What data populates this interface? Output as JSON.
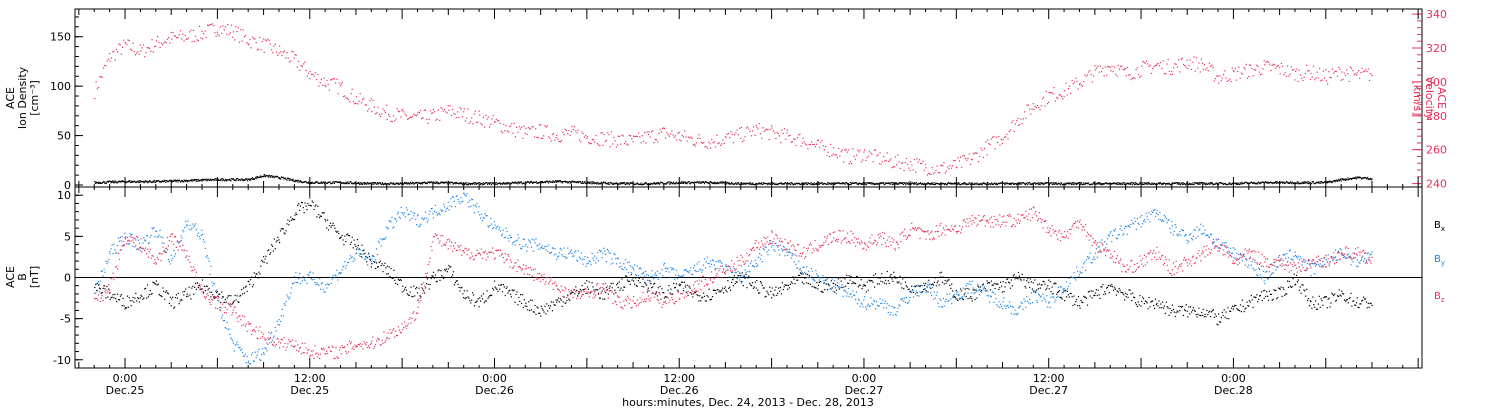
{
  "chart_data": [
    {
      "type": "scatter",
      "panel": "top",
      "ylabel_left": [
        "ACE",
        "Ion Density",
        "[cm⁻³]"
      ],
      "ylabel_right": [
        "ACE",
        "Velocity",
        "[km/s]"
      ],
      "ylim_left": [
        -2,
        178
      ],
      "ylim_right": [
        238,
        343
      ],
      "yticks_left": [
        0,
        50,
        100,
        150
      ],
      "yticks_right": [
        240,
        260,
        280,
        300,
        320,
        340
      ],
      "grid": false,
      "series": [
        {
          "axis": "right",
          "color": "#e8305a",
          "x": [
            -4,
            -2,
            0,
            2,
            4,
            6,
            8,
            10,
            12,
            14,
            16,
            18,
            20,
            22,
            24,
            26,
            28,
            30,
            32,
            34,
            36,
            38,
            40,
            42,
            44,
            46,
            48,
            50,
            52,
            54,
            56,
            58,
            60,
            62,
            64,
            66,
            68,
            70,
            72,
            74,
            76,
            78,
            80,
            82,
            84,
            86,
            88,
            90,
            92,
            94,
            96,
            98,
            100,
            102,
            104,
            106,
            108,
            110,
            112,
            114,
            116,
            118,
            120,
            122,
            124,
            126,
            128,
            130,
            132,
            134,
            136,
            138,
            140,
            142,
            144,
            146,
            148,
            150,
            152,
            154,
            156,
            158,
            160,
            162
          ],
          "y": [
            295,
            315,
            322,
            318,
            323,
            326,
            327,
            329,
            332,
            330,
            325,
            322,
            318,
            313,
            305,
            300,
            297,
            290,
            286,
            282,
            280,
            279,
            280,
            283,
            281,
            279,
            276,
            273,
            270,
            271,
            269,
            270,
            268,
            267,
            266,
            265,
            268,
            270,
            268,
            266,
            265,
            267,
            269,
            272,
            270,
            268,
            266,
            262,
            260,
            256,
            258,
            255,
            253,
            252,
            250,
            249,
            251,
            255,
            262,
            268,
            278,
            286,
            292,
            295,
            300,
            306,
            310,
            305,
            308,
            310,
            309,
            312,
            310,
            303,
            305,
            307,
            309,
            308,
            305,
            306,
            303,
            306,
            304,
            305
          ]
        },
        {
          "axis": "left",
          "color": "#000000",
          "x": [
            -4,
            0,
            4,
            8,
            12,
            16,
            18,
            20,
            22,
            24,
            28,
            32,
            36,
            40,
            44,
            48,
            52,
            56,
            60,
            64,
            68,
            72,
            76,
            80,
            84,
            88,
            92,
            96,
            100,
            104,
            108,
            112,
            116,
            120,
            124,
            128,
            132,
            136,
            140,
            144,
            148,
            152,
            156,
            158,
            160,
            162
          ],
          "y": [
            3,
            4,
            4,
            5,
            6,
            6,
            10,
            8,
            5,
            3,
            3,
            2,
            2,
            3,
            2,
            2,
            3,
            4,
            3,
            2,
            2,
            3,
            3,
            2,
            2,
            2,
            2,
            2,
            2,
            2,
            2,
            2,
            2,
            2,
            2,
            2,
            2,
            2,
            2,
            2,
            3,
            3,
            3,
            6,
            8,
            7
          ]
        }
      ]
    },
    {
      "type": "scatter",
      "panel": "bottom",
      "ylabel": [
        "ACE",
        "B",
        "[nT]"
      ],
      "ylim": [
        -11,
        11
      ],
      "yticks": [
        -10,
        -5,
        0,
        5,
        10
      ],
      "zero_line": true,
      "grid": false,
      "xlabel": "hours:minutes, Dec. 24, 2013 - Dec. 28, 2013",
      "xlim": [
        -6.5,
        168.5
      ],
      "xticks": [
        {
          "x": 0,
          "time": "0:00",
          "date": "Dec.25"
        },
        {
          "x": 24,
          "time": "12:00",
          "date": "Dec.25"
        },
        {
          "x": 48,
          "time": "0:00",
          "date": "Dec.26"
        },
        {
          "x": 72,
          "time": "12:00",
          "date": "Dec.26"
        },
        {
          "x": 96,
          "time": "0:00",
          "date": "Dec.27"
        },
        {
          "x": 120,
          "time": "12:00",
          "date": "Dec.27"
        },
        {
          "x": 144,
          "time": "0:00",
          "date": "Dec.28"
        }
      ],
      "legend_placement": "right",
      "series": [
        {
          "name": "Bx",
          "label_main": "B",
          "label_sub": "x",
          "color": "#000000",
          "x": [
            -4,
            -2,
            0,
            2,
            4,
            6,
            8,
            10,
            12,
            14,
            16,
            18,
            20,
            22,
            24,
            26,
            28,
            30,
            32,
            34,
            36,
            38,
            40,
            42,
            44,
            46,
            48,
            50,
            52,
            54,
            56,
            58,
            60,
            62,
            64,
            66,
            68,
            70,
            72,
            74,
            76,
            78,
            80,
            82,
            84,
            86,
            88,
            90,
            92,
            94,
            96,
            98,
            100,
            102,
            104,
            106,
            108,
            110,
            112,
            114,
            116,
            118,
            120,
            122,
            124,
            126,
            128,
            130,
            132,
            134,
            136,
            138,
            140,
            142,
            144,
            146,
            148,
            150,
            152,
            154,
            156,
            158,
            160,
            162
          ],
          "y": [
            -1,
            -2,
            -3,
            -2,
            -1,
            -3,
            -2,
            -1,
            -2,
            -3,
            -1,
            2,
            5,
            8,
            9,
            7,
            5,
            4,
            2,
            1,
            -1,
            -2,
            0,
            1,
            -2,
            -3,
            -1,
            -2,
            -3,
            -4,
            -3,
            -2,
            -1,
            -2,
            -1,
            0,
            -1,
            -2,
            -1,
            -2,
            -2,
            -1,
            0,
            -1,
            -2,
            -1,
            0,
            -1,
            -1,
            0,
            -1,
            0,
            0,
            -1,
            -1,
            0,
            -2,
            -2,
            -1,
            -1,
            0,
            -1,
            -1,
            -2,
            -3,
            -2,
            -1,
            -2,
            -3,
            -3,
            -4,
            -4,
            -4,
            -5,
            -4,
            -3,
            -2,
            -2,
            0,
            -3,
            -3,
            -2,
            -3,
            -3
          ]
        },
        {
          "name": "By",
          "label_main": "B",
          "label_sub": "y",
          "color": "#1e86e8",
          "x": [
            -4,
            -2,
            0,
            2,
            4,
            6,
            8,
            10,
            12,
            14,
            16,
            18,
            20,
            22,
            24,
            26,
            28,
            30,
            32,
            34,
            36,
            38,
            40,
            42,
            44,
            46,
            48,
            50,
            52,
            54,
            56,
            58,
            60,
            62,
            64,
            66,
            68,
            70,
            72,
            74,
            76,
            78,
            80,
            82,
            84,
            86,
            88,
            90,
            92,
            94,
            96,
            98,
            100,
            102,
            104,
            106,
            108,
            110,
            112,
            114,
            116,
            118,
            120,
            122,
            124,
            126,
            128,
            130,
            132,
            134,
            136,
            138,
            140,
            142,
            144,
            146,
            148,
            150,
            152,
            154,
            156,
            158,
            160,
            162
          ],
          "y": [
            -2,
            3,
            5,
            4,
            6,
            2,
            7,
            5,
            -3,
            -8,
            -10,
            -9,
            -5,
            0,
            0,
            -1,
            1,
            3,
            2,
            6,
            8,
            7,
            8,
            9,
            10,
            8,
            6,
            5,
            4,
            4,
            3,
            3,
            2,
            3,
            2,
            1,
            0,
            1,
            0,
            1,
            2,
            1,
            0,
            2,
            4,
            3,
            1,
            0,
            -1,
            -2,
            -3,
            -3,
            -4,
            -2,
            -1,
            -3,
            -2,
            -1,
            -2,
            -3,
            -4,
            -2,
            -3,
            -1,
            1,
            3,
            5,
            6,
            7,
            8,
            6,
            5,
            6,
            4,
            3,
            2,
            0,
            2,
            3,
            1,
            2,
            3,
            2,
            3
          ]
        },
        {
          "name": "Bz",
          "label_main": "B",
          "label_sub": "z",
          "color": "#e8305a",
          "x": [
            -4,
            -2,
            0,
            2,
            4,
            6,
            8,
            10,
            12,
            14,
            16,
            18,
            20,
            22,
            24,
            26,
            28,
            30,
            32,
            34,
            36,
            38,
            40,
            42,
            44,
            46,
            48,
            50,
            52,
            54,
            56,
            58,
            60,
            62,
            64,
            66,
            68,
            70,
            72,
            74,
            76,
            78,
            80,
            82,
            84,
            86,
            88,
            90,
            92,
            94,
            96,
            98,
            100,
            102,
            104,
            106,
            108,
            110,
            112,
            114,
            116,
            118,
            120,
            122,
            124,
            126,
            128,
            130,
            132,
            134,
            136,
            138,
            140,
            142,
            144,
            146,
            148,
            150,
            152,
            154,
            156,
            158,
            160,
            162
          ],
          "y": [
            -3,
            -1,
            5,
            4,
            2,
            5,
            3,
            -2,
            -3,
            -4,
            -6,
            -7,
            -8,
            -8,
            -9,
            -9,
            -9,
            -8,
            -8,
            -7,
            -6,
            -4,
            5,
            4,
            3,
            3,
            3,
            2,
            1,
            0,
            -1,
            -2,
            -2,
            -1,
            -3,
            -3,
            -2,
            -3,
            -2,
            -1,
            0,
            1,
            2,
            4,
            5,
            4,
            3,
            4,
            5,
            5,
            4,
            5,
            4,
            6,
            5,
            6,
            6,
            7,
            7,
            7,
            7,
            8,
            6,
            5,
            7,
            4,
            3,
            1,
            2,
            3,
            1,
            2,
            3,
            4,
            2,
            3,
            2,
            2,
            1,
            2,
            2,
            3,
            3,
            2
          ]
        }
      ]
    }
  ]
}
